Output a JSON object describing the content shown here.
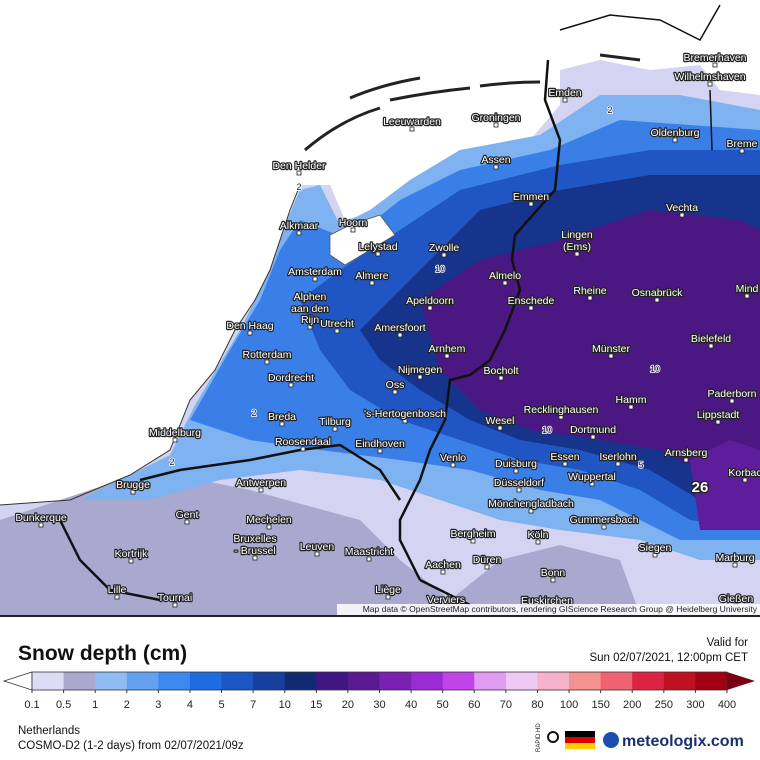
{
  "map": {
    "cities": [
      "Bremerhaven",
      "Wilhelmshaven",
      "Emden",
      "Leeuwarden",
      "Groningen",
      "Oldenburg",
      "Breme",
      "Den Helder",
      "Assen",
      "Emmen",
      "Vechta",
      "Alkmaar",
      "Hoorn",
      "Lingen",
      "(Ems)",
      "Lelystad",
      "Zwolle",
      "Amsterdam",
      "Almere",
      "Almelo",
      "Rheine",
      "Osnabrück",
      "Mind",
      "Alphen",
      "aan den",
      "Rijn",
      "Apeldoorn",
      "Enschede",
      "Den Haag",
      "Utrecht",
      "Amersfoort",
      "Bielefeld",
      "Arnhem",
      "Münster",
      "Rotterdam",
      "Nijmegen",
      "Bocholt",
      "Dordrecht",
      "Oss",
      "Hamm",
      "Paderborn",
      "Recklinghausen",
      "Lippstadt",
      "Breda",
      "Tilburg",
      "'s-Hertogenbosch",
      "Wesel",
      "Dortmund",
      "Middelburg",
      "Roosendaal",
      "Eindhoven",
      "Essen",
      "Iserlohn",
      "Arnsberg",
      "Venlo",
      "Duisburg",
      "Wuppertal",
      "Korbac",
      "Brugge",
      "Antwerpen",
      "Düsseldorf",
      "Mönchengladbach",
      "Dunkerque",
      "Gent",
      "Mechelen",
      "Gummersbach",
      "Bergheim",
      "Köln",
      "Bruxelles",
      "- Brussel",
      "Leuven",
      "Siegen",
      "Maastricht",
      "Kortrijk",
      "Düren",
      "Marburg",
      "Aachen",
      "Bonn",
      "Lille",
      "Liège",
      "Tournai",
      "Verviers",
      "Euskirchen",
      "Gießen"
    ],
    "contour_labels": [
      "2",
      "2",
      "10",
      "2",
      "2",
      "10",
      "10",
      "5"
    ],
    "max_label": "26",
    "attribution": "Map data © OpenStreetMap contributors, rendering GIScience Research Group @ Heidelberg University"
  },
  "legend": {
    "title": "Snow depth (cm)",
    "ticks": [
      0.1,
      0.5,
      1,
      2,
      3,
      4,
      5,
      7,
      10,
      15,
      20,
      30,
      40,
      50,
      60,
      70,
      80,
      100,
      150,
      200,
      250,
      300,
      400
    ],
    "colors": [
      "#dcdcf6",
      "#a9a9cf",
      "#8fbcf2",
      "#62a2f0",
      "#3d88ee",
      "#1f6be0",
      "#1c56c2",
      "#17409e",
      "#102b72",
      "#3f1682",
      "#5a1a92",
      "#7a20b2",
      "#9a2ad2",
      "#c044e8",
      "#df9cf1",
      "#efc9f6",
      "#f5b2ca",
      "#f49292",
      "#ef6272",
      "#de2342",
      "#bf1122",
      "#a00012"
    ],
    "over_color": "#7a0014"
  },
  "valid": {
    "label": "Valid for",
    "time": "Sun 02/07/2021, 12:00pm CET"
  },
  "footer": {
    "region": "Netherlands",
    "model": "COSMO-D2 (1-2 days) from 02/07/2021/09z",
    "badge": "RAPID HD",
    "brand": "meteologix.com"
  }
}
